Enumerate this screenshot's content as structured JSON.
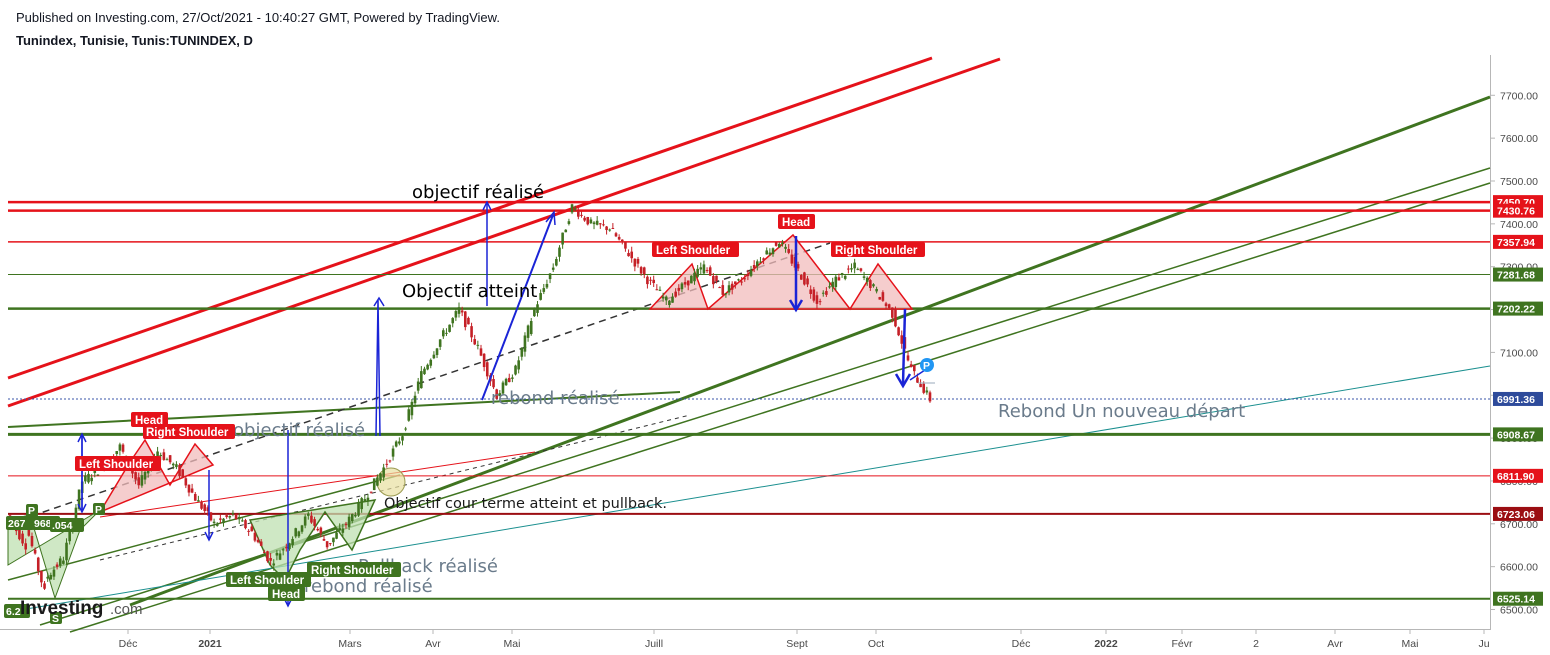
{
  "header": {
    "published": "Published on Investing.com, 27/Oct/2021 - 10:40:27 GMT, Powered by TradingView.",
    "ticker": "Tunindex, Tunisie, Tunis:TUNINDEX, D"
  },
  "logo": {
    "text": "Investing",
    "suffix": ".com"
  },
  "colors": {
    "red": "#e5121a",
    "green": "#3f7420",
    "blue": "#1a24d6",
    "up": "#3f7420",
    "down": "#c52027"
  },
  "chart_data": {
    "type": "candlestick",
    "y_axis": {
      "ticks": [
        6500,
        6600,
        6700,
        6800,
        6900,
        7000,
        7100,
        7200,
        7300,
        7400,
        7500,
        7600,
        7700
      ],
      "tick_labels": [
        "6500.00",
        "6600.00",
        "6700.00",
        "6800.00",
        "6900.00",
        "7000.00",
        "7100.00",
        "7200.00",
        "7300.00",
        "7400.00",
        "7500.00",
        "7600.00",
        "7700.00"
      ],
      "range": [
        6470,
        7790
      ]
    },
    "x_axis": {
      "labels": [
        "Déc",
        "2021",
        "Mars",
        "Avr",
        "Mai",
        "Juill",
        "Sept",
        "Oct",
        "Déc",
        "2022",
        "Févr",
        "2",
        "Avr",
        "Mai",
        "Ju"
      ]
    },
    "price_levels": [
      {
        "value": 7450.7,
        "label": "7450.70",
        "color": "red",
        "weight": 2.5
      },
      {
        "value": 7430.76,
        "label": "7430.76",
        "color": "red",
        "weight": 2.5
      },
      {
        "value": 7357.94,
        "label": "7357.94",
        "color": "red",
        "weight": 1.5
      },
      {
        "value": 7281.68,
        "label": "7281.68",
        "color": "green",
        "weight": 1
      },
      {
        "value": 7202.22,
        "label": "7202.22",
        "color": "green",
        "weight": 2.5
      },
      {
        "value": 6991.36,
        "label": "6991.36",
        "color": "blue-dotted",
        "weight": 1
      },
      {
        "value": 6908.67,
        "label": "6908.67",
        "color": "green",
        "weight": 3
      },
      {
        "value": 6811.9,
        "label": "6811.90",
        "color": "red",
        "weight": 1
      },
      {
        "value": 6723.06,
        "label": "6723.06",
        "color": "darkred",
        "weight": 2
      },
      {
        "value": 6525.14,
        "label": "6525.14",
        "color": "green",
        "weight": 2
      }
    ],
    "price_path": [
      [
        6720,
        6650
      ],
      [
        6700,
        6540
      ],
      [
        6570,
        6620
      ],
      [
        6620,
        6800
      ],
      [
        6800,
        6830
      ],
      [
        6830,
        6880
      ],
      [
        6880,
        6790
      ],
      [
        6790,
        6870
      ],
      [
        6870,
        6830
      ],
      [
        6830,
        6760
      ],
      [
        6760,
        6700
      ],
      [
        6700,
        6720
      ],
      [
        6720,
        6680
      ],
      [
        6680,
        6610
      ],
      [
        6610,
        6660
      ],
      [
        6660,
        6720
      ],
      [
        6720,
        6650
      ],
      [
        6650,
        6700
      ],
      [
        6700,
        6760
      ],
      [
        6760,
        6830
      ],
      [
        6830,
        6910
      ],
      [
        6910,
        7050
      ],
      [
        7050,
        7130
      ],
      [
        7130,
        7200
      ],
      [
        7200,
        7110
      ],
      [
        7110,
        7000
      ],
      [
        7000,
        7060
      ],
      [
        7060,
        7200
      ],
      [
        7200,
        7300
      ],
      [
        7300,
        7440
      ],
      [
        7440,
        7400
      ],
      [
        7400,
        7390
      ],
      [
        7390,
        7330
      ],
      [
        7330,
        7270
      ],
      [
        7270,
        7220
      ],
      [
        7220,
        7260
      ],
      [
        7260,
        7300
      ],
      [
        7300,
        7240
      ],
      [
        7240,
        7270
      ],
      [
        7270,
        7320
      ],
      [
        7320,
        7360
      ],
      [
        7360,
        7290
      ],
      [
        7290,
        7220
      ],
      [
        7220,
        7270
      ],
      [
        7270,
        7300
      ],
      [
        7300,
        7250
      ],
      [
        7250,
        7190
      ],
      [
        7190,
        7060
      ],
      [
        7060,
        6990
      ]
    ],
    "annotations": {
      "objectif_realise": "objectif réalisé",
      "objectif_atteint": "Objectif atteint",
      "rebond_realise_1": "rebond réalisé",
      "objectif_realise_2": "objectif réalisé",
      "rebond_nouveau_depart": "Rebond  Un nouveau départ",
      "objectif_court_terme": "Objectif cour terme atteint et pullback.",
      "pullback_realise": "Pullback réalisé",
      "rebond_realise_2": "rebond réalisé"
    },
    "pattern_labels": {
      "head_red_1": "Head",
      "right_shoulder_red_1": "Right Shoulder",
      "left_shoulder_red_1": "Left Shoulder",
      "left_shoulder_red_2": "Left Shoulder",
      "head_red_2": "Head",
      "right_shoulder_red_2": "Right Shoulder",
      "left_shoulder_green": "Left Shoulder",
      "right_shoulder_green": "Right Shoulder",
      "head_green": "Head"
    },
    "pivot_labels": {
      "p_top_left": "P",
      "num_left": "267",
      "num_left2": "968",
      "num_left3": ".054",
      "p_left_small": "P",
      "p_blue": "P",
      "s_bottom": "S",
      "bottom_left": "6.2",
      "green_small": "P"
    }
  }
}
